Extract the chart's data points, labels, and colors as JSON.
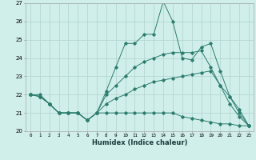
{
  "xlabel": "Humidex (Indice chaleur)",
  "x": [
    0,
    1,
    2,
    3,
    4,
    5,
    6,
    7,
    8,
    9,
    10,
    11,
    12,
    13,
    14,
    15,
    16,
    17,
    18,
    19,
    20,
    21,
    22,
    23
  ],
  "line1": [
    22.0,
    21.9,
    21.5,
    21.0,
    21.0,
    21.0,
    20.6,
    21.0,
    22.2,
    23.5,
    24.8,
    24.8,
    25.3,
    25.3,
    27.1,
    26.0,
    24.0,
    23.9,
    24.6,
    24.8,
    23.3,
    21.9,
    21.0,
    20.3
  ],
  "line2": [
    22.0,
    21.9,
    21.5,
    21.0,
    21.0,
    21.0,
    20.6,
    21.0,
    22.0,
    22.5,
    23.0,
    23.5,
    23.8,
    24.0,
    24.2,
    24.3,
    24.3,
    24.3,
    24.4,
    23.5,
    22.5,
    21.9,
    21.2,
    20.3
  ],
  "line3": [
    22.0,
    21.9,
    21.5,
    21.0,
    21.0,
    21.0,
    20.6,
    21.0,
    21.5,
    21.8,
    22.0,
    22.3,
    22.5,
    22.7,
    22.8,
    22.9,
    23.0,
    23.1,
    23.2,
    23.3,
    22.5,
    21.5,
    20.8,
    20.3
  ],
  "line4": [
    22.0,
    22.0,
    21.5,
    21.0,
    21.0,
    21.0,
    20.6,
    21.0,
    21.0,
    21.0,
    21.0,
    21.0,
    21.0,
    21.0,
    21.0,
    21.0,
    20.8,
    20.7,
    20.6,
    20.5,
    20.4,
    20.4,
    20.3,
    20.3
  ],
  "line_color": "#2d7d6e",
  "bg_color": "#d0eeea",
  "grid_color": "#b0d4d0",
  "ylim": [
    20,
    27
  ],
  "yticks": [
    20,
    21,
    22,
    23,
    24,
    25,
    26,
    27
  ],
  "xlim": [
    -0.5,
    23.5
  ]
}
